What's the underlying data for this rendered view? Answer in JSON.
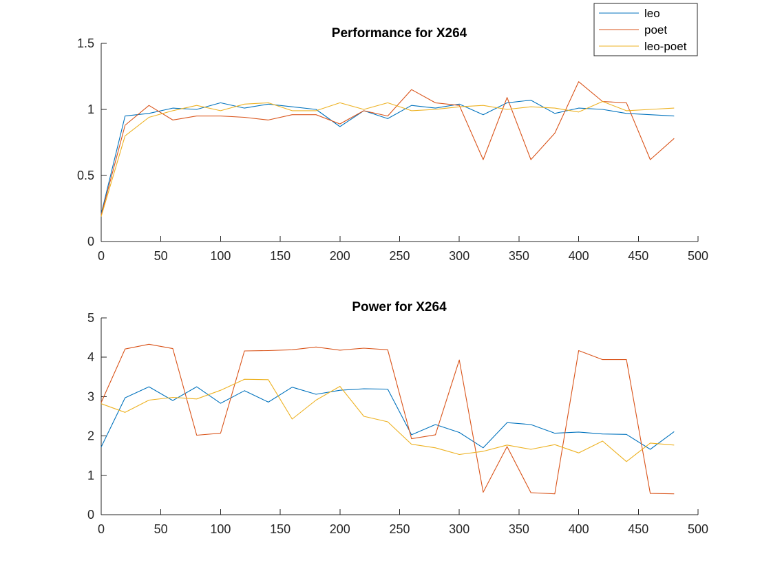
{
  "legend": {
    "placement": "top-right",
    "entries": [
      {
        "label": "leo",
        "color": "#0072BD"
      },
      {
        "label": "poet",
        "color": "#D95319"
      },
      {
        "label": "leo-poet",
        "color": "#EDB120"
      }
    ]
  },
  "chart_data": [
    {
      "type": "line",
      "title": "Performance for X264",
      "xlabel": "",
      "ylabel": "",
      "xlim": [
        0,
        500
      ],
      "ylim": [
        0,
        1.5
      ],
      "x_ticks": [
        "0",
        "50",
        "100",
        "150",
        "200",
        "250",
        "300",
        "350",
        "400",
        "450",
        "500"
      ],
      "y_ticks": [
        "0",
        "0.5",
        "1",
        "1.5"
      ],
      "x_tick_values": [
        0,
        50,
        100,
        150,
        200,
        250,
        300,
        350,
        400,
        450,
        500
      ],
      "y_tick_values": [
        0,
        0.5,
        1,
        1.5
      ],
      "grid": false,
      "x": [
        0,
        20,
        40,
        60,
        80,
        100,
        120,
        140,
        160,
        180,
        200,
        220,
        240,
        260,
        280,
        300,
        320,
        340,
        360,
        380,
        400,
        420,
        440,
        460,
        480
      ],
      "series": [
        {
          "name": "leo",
          "color": "#0072BD",
          "values": [
            0.21,
            0.95,
            0.97,
            1.01,
            1.0,
            1.05,
            1.01,
            1.04,
            1.02,
            1.0,
            0.87,
            0.99,
            0.93,
            1.03,
            1.01,
            1.04,
            0.96,
            1.05,
            1.07,
            0.97,
            1.01,
            1.0,
            0.97,
            0.96,
            0.95
          ]
        },
        {
          "name": "poet",
          "color": "#D95319",
          "values": [
            0.2,
            0.88,
            1.03,
            0.92,
            0.95,
            0.95,
            0.94,
            0.92,
            0.96,
            0.96,
            0.89,
            0.99,
            0.95,
            1.15,
            1.05,
            1.03,
            0.62,
            1.09,
            0.62,
            0.82,
            1.21,
            1.06,
            1.05,
            0.62,
            0.78
          ]
        },
        {
          "name": "leo-poet",
          "color": "#EDB120",
          "values": [
            0.19,
            0.8,
            0.94,
            0.99,
            1.03,
            0.99,
            1.04,
            1.05,
            0.99,
            0.99,
            1.05,
            1.0,
            1.05,
            0.99,
            1.0,
            1.02,
            1.03,
            1.0,
            1.02,
            1.01,
            0.98,
            1.06,
            0.99,
            1.0,
            1.01
          ]
        }
      ]
    },
    {
      "type": "line",
      "title": "Power for X264",
      "xlabel": "",
      "ylabel": "",
      "xlim": [
        0,
        500
      ],
      "ylim": [
        0,
        5
      ],
      "x_ticks": [
        "0",
        "50",
        "100",
        "150",
        "200",
        "250",
        "300",
        "350",
        "400",
        "450",
        "500"
      ],
      "y_ticks": [
        "0",
        "1",
        "2",
        "3",
        "4",
        "5"
      ],
      "x_tick_values": [
        0,
        50,
        100,
        150,
        200,
        250,
        300,
        350,
        400,
        450,
        500
      ],
      "y_tick_values": [
        0,
        1,
        2,
        3,
        4,
        5
      ],
      "grid": false,
      "x": [
        0,
        20,
        40,
        60,
        80,
        100,
        120,
        140,
        160,
        180,
        200,
        220,
        240,
        260,
        280,
        300,
        320,
        340,
        360,
        380,
        400,
        420,
        440,
        460,
        480
      ],
      "series": [
        {
          "name": "leo",
          "color": "#0072BD",
          "values": [
            1.72,
            2.97,
            3.25,
            2.9,
            3.25,
            2.83,
            3.15,
            2.86,
            3.24,
            3.06,
            3.16,
            3.2,
            3.19,
            2.03,
            2.29,
            2.09,
            1.7,
            2.34,
            2.29,
            2.07,
            2.1,
            2.05,
            2.04,
            1.66,
            2.11
          ]
        },
        {
          "name": "poet",
          "color": "#D95319",
          "values": [
            2.85,
            4.21,
            4.33,
            4.22,
            2.02,
            2.07,
            4.16,
            4.17,
            4.19,
            4.26,
            4.18,
            4.23,
            4.19,
            1.93,
            2.03,
            3.93,
            0.57,
            1.73,
            0.56,
            0.53,
            4.17,
            3.94,
            3.94,
            0.54,
            0.53
          ]
        },
        {
          "name": "leo-poet",
          "color": "#EDB120",
          "values": [
            2.82,
            2.6,
            2.91,
            2.98,
            2.94,
            3.16,
            3.44,
            3.43,
            2.43,
            2.91,
            3.26,
            2.5,
            2.36,
            1.79,
            1.7,
            1.53,
            1.61,
            1.77,
            1.66,
            1.78,
            1.57,
            1.87,
            1.35,
            1.82,
            1.77
          ]
        }
      ]
    }
  ]
}
